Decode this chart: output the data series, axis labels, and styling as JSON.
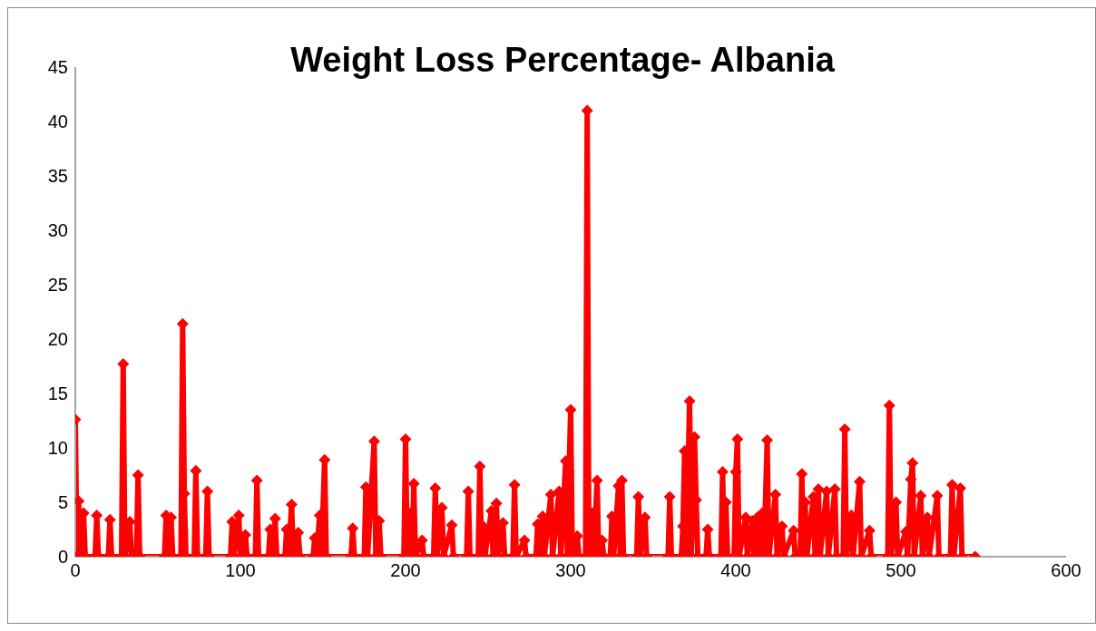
{
  "chart_data": {
    "type": "line",
    "title": "Weight Loss Percentage- Albania",
    "x": [
      0,
      1,
      2,
      3,
      5,
      6,
      12,
      13,
      14,
      20,
      21,
      22,
      28,
      29,
      30,
      33,
      34,
      37,
      38,
      39,
      54,
      55,
      56,
      58,
      59,
      64,
      65,
      66,
      67,
      72,
      73,
      74,
      79,
      80,
      81,
      94,
      95,
      96,
      99,
      100,
      103,
      104,
      109,
      110,
      111,
      117,
      118,
      119,
      121,
      122,
      127,
      128,
      129,
      131,
      132,
      135,
      136,
      144,
      145,
      146,
      148,
      149,
      151,
      152,
      167,
      168,
      169,
      175,
      176,
      177,
      181,
      182,
      184,
      185,
      199,
      200,
      201,
      203,
      204,
      205,
      206,
      210,
      211,
      217,
      218,
      219,
      222,
      223,
      228,
      229,
      237,
      238,
      239,
      244,
      245,
      246,
      247,
      248,
      252,
      253,
      255,
      256,
      259,
      260,
      265,
      266,
      267,
      272,
      273,
      279,
      280,
      281,
      283,
      284,
      288,
      289,
      293,
      294,
      297,
      298,
      299,
      300,
      301,
      304,
      305,
      309,
      310,
      311,
      313,
      314,
      316,
      317,
      319,
      320,
      324,
      325,
      326,
      329,
      330,
      331,
      332,
      340,
      341,
      342,
      345,
      346,
      359,
      360,
      361,
      367,
      368,
      369,
      370,
      372,
      373,
      375,
      376,
      377,
      382,
      383,
      384,
      391,
      392,
      393,
      394,
      395,
      399,
      400,
      401,
      402,
      406,
      407,
      410,
      411,
      413,
      414,
      416,
      417,
      419,
      420,
      424,
      425,
      428,
      429,
      435,
      436,
      439,
      440,
      441,
      442,
      443,
      447,
      448,
      450,
      451,
      455,
      456,
      460,
      461,
      465,
      466,
      467,
      470,
      471,
      475,
      476,
      481,
      482,
      492,
      493,
      494,
      497,
      498,
      503,
      504,
      506,
      507,
      508,
      512,
      513,
      516,
      517,
      522,
      523,
      530,
      531,
      532,
      536,
      537,
      545
    ],
    "values": [
      12.6,
      0,
      5.1,
      0,
      4,
      0,
      0,
      3.8,
      0,
      0,
      3.4,
      0,
      0,
      17.7,
      0,
      3.2,
      0,
      0,
      7.5,
      0,
      0,
      3.8,
      0,
      3.6,
      0,
      0,
      21.4,
      5.8,
      0,
      0,
      7.9,
      0,
      0,
      6,
      0,
      0,
      3.2,
      0,
      3.8,
      0,
      2,
      0,
      0,
      7,
      0,
      0,
      2.5,
      0,
      3.5,
      0,
      0,
      2.5,
      0,
      4.8,
      0,
      2.2,
      0,
      0,
      1.7,
      0,
      3.8,
      0,
      8.9,
      0,
      0,
      2.6,
      0,
      0,
      6.4,
      0,
      10.6,
      0,
      3.3,
      0,
      0,
      10.8,
      0,
      4,
      0,
      6.7,
      0,
      1.5,
      0,
      0,
      6.3,
      0,
      4.5,
      0,
      2.9,
      0,
      0,
      6,
      0,
      0,
      8.3,
      0,
      2.8,
      0,
      4.2,
      0,
      4.9,
      0,
      3.1,
      0,
      0,
      6.6,
      0,
      1.5,
      0,
      0,
      3,
      0,
      3.7,
      0,
      5.7,
      0,
      6,
      0,
      8.8,
      0,
      7.8,
      13.5,
      0,
      1.9,
      0,
      0,
      41,
      0,
      4,
      0,
      7,
      0,
      1.5,
      0,
      0,
      3.7,
      0,
      6.5,
      0,
      7,
      0,
      0,
      5.5,
      0,
      3.6,
      0,
      0,
      5.5,
      0,
      0,
      2.8,
      9.7,
      0,
      14.3,
      0,
      11,
      5.2,
      0,
      0,
      2.5,
      0,
      0,
      7.8,
      0,
      5,
      0,
      0,
      7.8,
      10.8,
      0,
      3.6,
      0,
      3.3,
      0,
      3.6,
      0,
      4,
      0,
      10.7,
      0,
      5.7,
      0,
      2.8,
      0,
      2.4,
      0,
      0,
      7.6,
      0,
      5,
      0,
      5.5,
      0,
      6.2,
      0,
      6,
      0,
      6.2,
      0,
      0,
      11.7,
      0,
      3.8,
      0,
      6.9,
      0,
      2.4,
      0,
      0,
      13.9,
      0,
      5,
      0,
      2.3,
      0,
      7.1,
      8.6,
      0,
      5.6,
      0,
      3.6,
      0,
      5.6,
      0,
      0,
      6.6,
      0,
      6.3,
      0,
      0
    ],
    "color": "#ff0000",
    "marker": "diamond",
    "line_style": "solid",
    "xlim": [
      0,
      600
    ],
    "xticks": [
      0,
      100,
      200,
      300,
      400,
      500,
      600
    ],
    "ylim": [
      0,
      45
    ],
    "yticks": [
      0,
      5,
      10,
      15,
      20,
      25,
      30,
      35,
      40,
      45
    ]
  }
}
